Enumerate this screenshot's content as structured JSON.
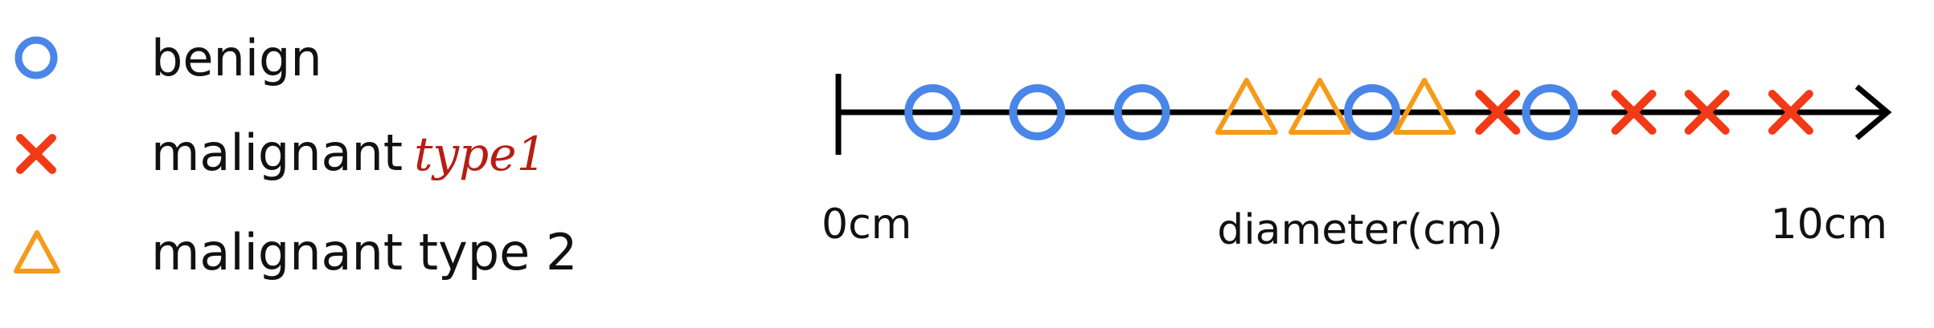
{
  "legend": {
    "items": [
      {
        "label": "benign",
        "marker": "circle",
        "color": "#4a86e8"
      },
      {
        "label": "malignant",
        "annotation": "type1",
        "marker": "x",
        "color": "#f23a16"
      },
      {
        "label": "malignant type 2",
        "marker": "triangle",
        "color": "#f49b1a"
      }
    ]
  },
  "chart_data": {
    "type": "scatter",
    "xlabel": "diameter(cm)",
    "xlim": [
      0,
      10
    ],
    "tick_labels": [
      "0cm",
      "10cm"
    ],
    "series": [
      {
        "name": "benign",
        "marker": "circle",
        "color": "#4a86e8",
        "x": [
          0.9,
          1.9,
          2.9,
          5.1,
          6.8
        ]
      },
      {
        "name": "malignant type1",
        "marker": "x",
        "color": "#f23a16",
        "x": [
          6.3,
          7.6,
          8.3,
          9.1
        ]
      },
      {
        "name": "malignant type 2",
        "marker": "triangle",
        "color": "#f49b1a",
        "x": [
          3.9,
          4.6,
          5.6
        ]
      }
    ]
  }
}
